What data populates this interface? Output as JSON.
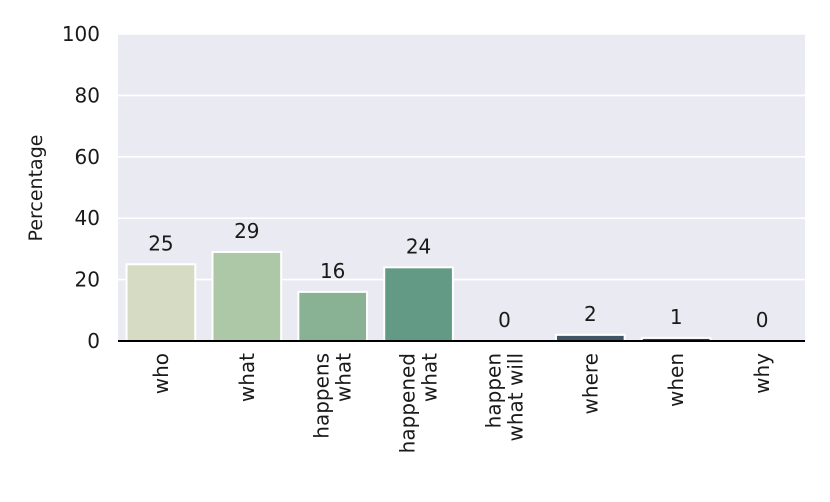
{
  "chart_data": {
    "type": "bar",
    "ylabel": "Percentage",
    "ylim": [
      0,
      100
    ],
    "yticks": [
      0,
      20,
      40,
      60,
      80,
      100
    ],
    "grid": true,
    "categories": [
      "who",
      "what",
      "what\nhappens",
      "what\nhappened",
      "what will\nhappen",
      "where",
      "when",
      "why"
    ],
    "values": [
      25,
      29,
      16,
      24,
      0,
      2,
      1,
      0
    ],
    "value_labels": [
      "25",
      "29",
      "16",
      "24",
      "0",
      "2",
      "1",
      "0"
    ],
    "colors": [
      "#d6dbc3",
      "#adc8a7",
      "#88b293",
      "#639a86",
      "#3f6a6b",
      "#3f5566",
      "#2f3d4b",
      "#1f2630"
    ],
    "plot_background": "#eaeaf2",
    "grid_color": "#ffffff",
    "axis_color": "#000000"
  }
}
